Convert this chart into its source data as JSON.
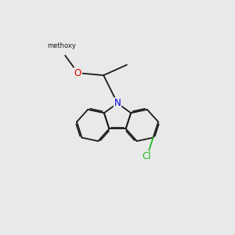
{
  "bg": "#e9e9e9",
  "bc": "#1a1a1a",
  "N_color": "#0000dd",
  "O_color": "#dd0000",
  "Cl_color": "#22bb22",
  "lw": 1.3,
  "dbl_off": 0.055,
  "dbl_shorten": 0.12,
  "fs": 8.5,
  "xlim": [
    0,
    10
  ],
  "ylim": [
    0,
    10
  ]
}
